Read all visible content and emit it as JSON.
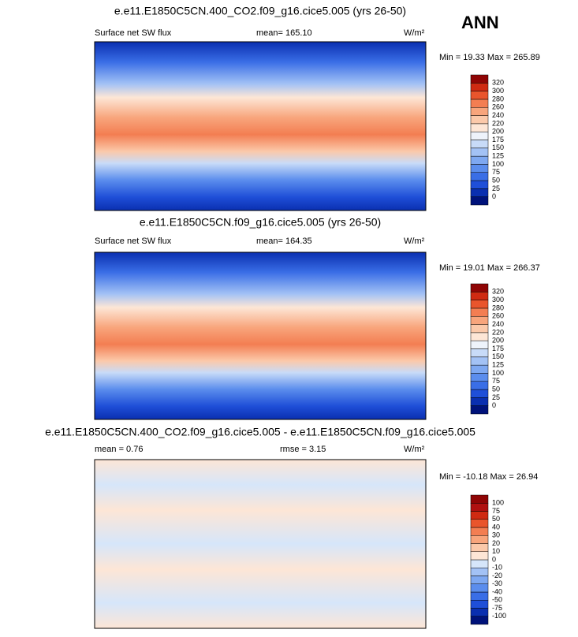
{
  "header": {
    "label": "ANN"
  },
  "panels": [
    {
      "title": "e.e11.E1850C5CN.400_CO2.f09_g16.cice5.005 (yrs 26-50)",
      "left_label": "Surface net SW flux",
      "center_label": "mean= 165.10",
      "units": "W/m²",
      "min_max": "Min = 19.33 Max = 265.89",
      "colorbar": {
        "labels": [
          0,
          25,
          50,
          75,
          100,
          125,
          150,
          175,
          200,
          220,
          240,
          260,
          280,
          300,
          320
        ],
        "colors": [
          "#00127a",
          "#0a2fb0",
          "#1f4fd8",
          "#3a6ee6",
          "#5b8ded",
          "#7ea8f1",
          "#a3c2f5",
          "#c8dbf8",
          "#eef3fb",
          "#fde6d6",
          "#fbc9aa",
          "#f8a57c",
          "#f37e52",
          "#e9552c",
          "#cf2a12",
          "#8f0505"
        ]
      }
    },
    {
      "title": "e.e11.E1850C5CN.f09_g16.cice5.005 (yrs 26-50)",
      "left_label": "Surface net SW flux",
      "center_label": "mean= 164.35",
      "units": "W/m²",
      "min_max": "Min = 19.01 Max = 266.37",
      "colorbar": {
        "labels": [
          0,
          25,
          50,
          75,
          100,
          125,
          150,
          175,
          200,
          220,
          240,
          260,
          280,
          300,
          320
        ],
        "colors": [
          "#00127a",
          "#0a2fb0",
          "#1f4fd8",
          "#3a6ee6",
          "#5b8ded",
          "#7ea8f1",
          "#a3c2f5",
          "#c8dbf8",
          "#eef3fb",
          "#fde6d6",
          "#fbc9aa",
          "#f8a57c",
          "#f37e52",
          "#e9552c",
          "#cf2a12",
          "#8f0505"
        ]
      }
    },
    {
      "title": "e.e11.E1850C5CN.400_CO2.f09_g16.cice5.005 - e.e11.E1850C5CN.f09_g16.cice5.005",
      "left_label": "mean =  0.76",
      "center_label": "rmse =  3.15",
      "units": "W/m²",
      "min_max": "Min = -10.18 Max =  26.94",
      "colorbar": {
        "labels": [
          -100,
          -75,
          -50,
          -40,
          -30,
          -20,
          -10,
          0,
          10,
          20,
          30,
          40,
          50,
          75,
          100
        ],
        "colors": [
          "#00127a",
          "#0a2fb0",
          "#1f4fd8",
          "#3a6ee6",
          "#5b8ded",
          "#7ea8f1",
          "#a3c2f5",
          "#d6e6fa",
          "#fde6d6",
          "#fbc9aa",
          "#f8a57c",
          "#f37e52",
          "#e9552c",
          "#cf2a12",
          "#b01010",
          "#8f0505"
        ]
      }
    }
  ]
}
